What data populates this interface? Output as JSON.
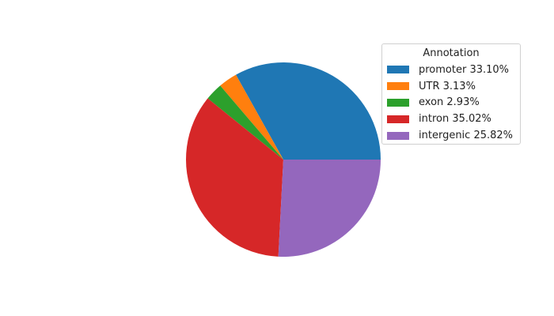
{
  "chart_data": {
    "type": "pie",
    "legend_title": "Annotation",
    "legend_placement": "upper-right",
    "start_angle_deg": 0,
    "counterclockwise": true,
    "slices": [
      {
        "label": "promoter 33.10%",
        "value": 33.1,
        "color": "#1f77b4"
      },
      {
        "label": "UTR 3.13%",
        "value": 3.13,
        "color": "#ff7f0e"
      },
      {
        "label": "exon 2.93%",
        "value": 2.93,
        "color": "#2ca02c"
      },
      {
        "label": "intron 35.02%",
        "value": 35.02,
        "color": "#d62728"
      },
      {
        "label": "intergenic 25.82%",
        "value": 25.82,
        "color": "#9467bd"
      }
    ]
  }
}
